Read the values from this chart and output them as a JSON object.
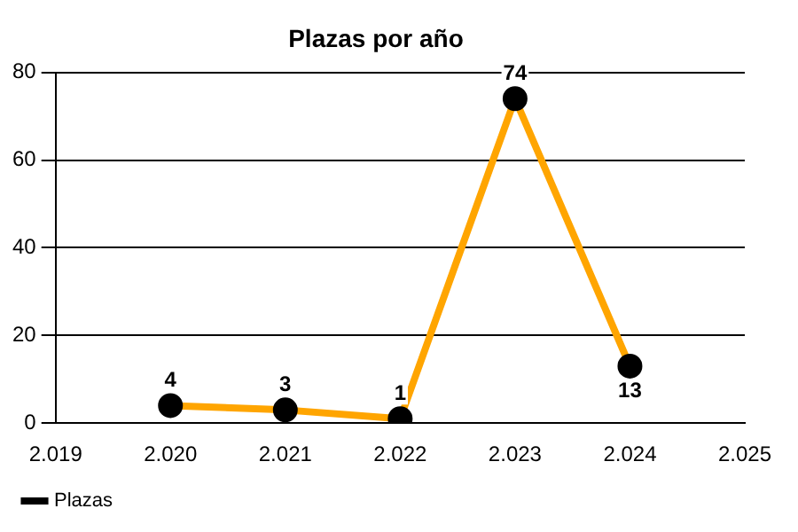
{
  "chart_data": {
    "type": "line",
    "title": "Plazas por año",
    "x": [
      2020,
      2021,
      2022,
      2023,
      2024
    ],
    "series": [
      {
        "name": "Plazas",
        "color": "#ffa500",
        "values": [
          4,
          3,
          1,
          74,
          13
        ]
      }
    ],
    "xlim": [
      2019,
      2025
    ],
    "xticks": [
      {
        "value": 2019,
        "label": "2.019"
      },
      {
        "value": 2020,
        "label": "2.020"
      },
      {
        "value": 2021,
        "label": "2.021"
      },
      {
        "value": 2022,
        "label": "2.022"
      },
      {
        "value": 2023,
        "label": "2.023"
      },
      {
        "value": 2024,
        "label": "2.024"
      },
      {
        "value": 2025,
        "label": "2.025"
      }
    ],
    "ylim": [
      0,
      80
    ],
    "yticks": [
      0,
      20,
      40,
      60,
      80
    ],
    "grid": "y",
    "legend": "bottom left",
    "marker": "circle",
    "line_style": "solid",
    "data_labels": true
  }
}
